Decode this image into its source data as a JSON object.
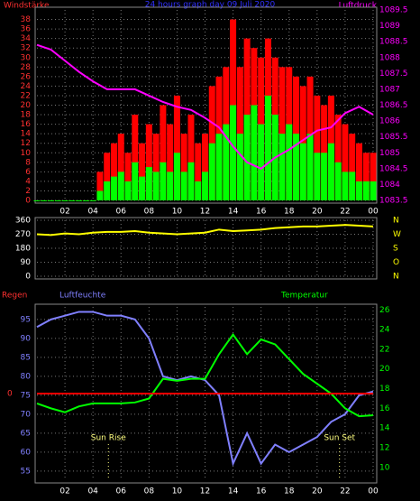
{
  "chart_data": [
    {
      "type": "bar",
      "title": "24 hours graph day  09 Juli 2020",
      "y_label": "Windstärke",
      "y2_label": "Luftdruck",
      "xlim": [
        0,
        24
      ],
      "xticks": [
        {
          "value": 2,
          "label": "02"
        },
        {
          "value": 4,
          "label": "04"
        },
        {
          "value": 6,
          "label": "06"
        },
        {
          "value": 8,
          "label": "08"
        },
        10,
        12,
        14,
        16,
        18,
        20,
        22,
        {
          "value": 24,
          "label": "00"
        }
      ],
      "ylim": [
        0,
        40
      ],
      "yticks": [
        0,
        2,
        4,
        6,
        8,
        10,
        12,
        14,
        16,
        18,
        20,
        22,
        24,
        26,
        28,
        30,
        32,
        34,
        36,
        38
      ],
      "y2lim": [
        1083.5,
        1089.5
      ],
      "y2ticks": [
        1083.5,
        1084,
        1084.5,
        1085,
        1085.5,
        1086,
        1086.5,
        1087,
        1087.5,
        1088,
        1088.5,
        1089,
        1089.5
      ],
      "series": [
        {
          "type": "bar",
          "color": "#ff0000",
          "x": [
            0,
            0.5,
            1,
            1.5,
            2,
            2.5,
            3,
            3.5,
            4,
            4.5,
            5,
            5.5,
            6,
            6.5,
            7,
            7.5,
            8,
            8.5,
            9,
            9.5,
            10,
            10.5,
            11,
            11.5,
            12,
            12.5,
            13,
            13.5,
            14,
            14.5,
            15,
            15.5,
            16,
            16.5,
            17,
            17.5,
            18,
            18.5,
            19,
            19.5,
            20,
            20.5,
            21,
            21.5,
            22,
            22.5,
            23,
            23.5,
            24
          ],
          "values": [
            0,
            0,
            0,
            0,
            0,
            0,
            0,
            0,
            0,
            6,
            10,
            12,
            14,
            10,
            18,
            12,
            16,
            14,
            20,
            16,
            22,
            14,
            18,
            12,
            14,
            24,
            26,
            28,
            38,
            28,
            34,
            32,
            30,
            34,
            30,
            28,
            28,
            26,
            24,
            26,
            22,
            20,
            22,
            18,
            16,
            14,
            12,
            10,
            10
          ]
        },
        {
          "type": "bar",
          "color": "#00ff00",
          "x": [
            0,
            0.5,
            1,
            1.5,
            2,
            2.5,
            3,
            3.5,
            4,
            4.5,
            5,
            5.5,
            6,
            6.5,
            7,
            7.5,
            8,
            8.5,
            9,
            9.5,
            10,
            10.5,
            11,
            11.5,
            12,
            12.5,
            13,
            13.5,
            14,
            14.5,
            15,
            15.5,
            16,
            16.5,
            17,
            17.5,
            18,
            18.5,
            19,
            19.5,
            20,
            20.5,
            21,
            21.5,
            22,
            22.5,
            23,
            23.5,
            24
          ],
          "values": [
            0,
            0,
            0,
            0,
            0,
            0,
            0,
            0,
            0,
            2,
            4,
            5,
            6,
            4,
            8,
            5,
            7,
            6,
            8,
            6,
            10,
            6,
            8,
            4,
            6,
            12,
            14,
            16,
            20,
            14,
            18,
            20,
            16,
            22,
            18,
            14,
            16,
            14,
            12,
            14,
            10,
            10,
            12,
            8,
            6,
            6,
            4,
            4,
            4
          ]
        },
        {
          "type": "line",
          "axis": "y2",
          "color": "#ff00ff",
          "x": [
            0,
            1,
            2,
            3,
            4,
            5,
            6,
            7,
            8,
            9,
            10,
            11,
            12,
            13,
            14,
            15,
            16,
            17,
            18,
            19,
            20,
            21,
            22,
            23,
            24
          ],
          "values": [
            1088.4,
            1088.25,
            1087.9,
            1087.55,
            1087.25,
            1087,
            1087,
            1087,
            1086.8,
            1086.6,
            1086.45,
            1086.35,
            1086.1,
            1085.8,
            1085.2,
            1084.7,
            1084.5,
            1084.85,
            1085.1,
            1085.4,
            1085.7,
            1085.8,
            1086.25,
            1086.45,
            1086.2
          ]
        }
      ]
    },
    {
      "type": "line",
      "xlim": [
        0,
        24
      ],
      "xticks": [
        {
          "value": 2,
          "label": "02"
        },
        {
          "value": 4,
          "label": "04"
        },
        {
          "value": 6,
          "label": "06"
        },
        {
          "value": 8,
          "label": "08"
        },
        10,
        12,
        14,
        16,
        18,
        20,
        22,
        {
          "value": 24,
          "label": "00"
        }
      ],
      "ylim": [
        0,
        360
      ],
      "yticks": [
        0,
        90,
        180,
        270,
        360
      ],
      "y2lim": [
        0,
        360
      ],
      "y2ticks": [
        {
          "value": 360,
          "label": "N"
        },
        {
          "value": 270,
          "label": "W"
        },
        {
          "value": 180,
          "label": "S"
        },
        {
          "value": 90,
          "label": "O"
        },
        {
          "value": 0,
          "label": "N"
        }
      ],
      "series": [
        {
          "type": "line",
          "color": "#ffff00",
          "x": [
            0,
            1,
            2,
            3,
            4,
            5,
            6,
            7,
            8,
            9,
            10,
            11,
            12,
            13,
            14,
            15,
            16,
            17,
            18,
            19,
            20,
            21,
            22,
            23,
            24
          ],
          "values": [
            270,
            265,
            275,
            270,
            280,
            285,
            285,
            290,
            280,
            275,
            270,
            275,
            280,
            300,
            290,
            295,
            300,
            310,
            315,
            320,
            320,
            325,
            330,
            325,
            320
          ]
        }
      ]
    },
    {
      "type": "line",
      "y3_label": "Regen",
      "y_label": "Luftfeuchte",
      "y2_label": "Temperatur",
      "xlim": [
        0,
        24
      ],
      "xticks": [
        {
          "value": 2,
          "label": "02"
        },
        {
          "value": 4,
          "label": "04"
        },
        {
          "value": 6,
          "label": "06"
        },
        {
          "value": 8,
          "label": "08"
        },
        10,
        12,
        14,
        16,
        18,
        20,
        22,
        {
          "value": 24,
          "label": "00"
        }
      ],
      "ylim": [
        52.6,
        98.3
      ],
      "yticks": [
        55,
        60,
        65,
        70,
        75,
        80,
        85,
        90,
        95
      ],
      "y2lim": [
        8.7,
        26.3
      ],
      "y2ticks": [
        10,
        12,
        14,
        16,
        18,
        20,
        22,
        24,
        26
      ],
      "y3lim": [
        -1,
        1
      ],
      "y3ticks": [
        0
      ],
      "annotations": [
        {
          "text": "Sun Rise",
          "x": 5.1
        },
        {
          "text": "Sun Set",
          "x": 21.6
        }
      ],
      "series": [
        {
          "type": "line",
          "color": "#8080ff",
          "x": [
            0,
            1,
            2,
            3,
            4,
            5,
            6,
            7,
            8,
            9,
            10,
            11,
            12,
            13,
            14,
            15,
            16,
            17,
            18,
            19,
            20,
            21,
            22,
            23,
            24
          ],
          "values": [
            93,
            95,
            96,
            97,
            97,
            96,
            96,
            95,
            90,
            80,
            79,
            80,
            79,
            75,
            57,
            65,
            57,
            62,
            60,
            62,
            64,
            68,
            70,
            75,
            76
          ]
        },
        {
          "type": "line",
          "axis": "y2",
          "color": "#00ff00",
          "x": [
            0,
            1,
            2,
            3,
            4,
            5,
            6,
            7,
            8,
            9,
            10,
            11,
            12,
            13,
            14,
            15,
            16,
            17,
            18,
            19,
            20,
            21,
            22,
            23,
            24
          ],
          "values": [
            16.5,
            16,
            15.6,
            16.2,
            16.5,
            16.5,
            16.5,
            16.6,
            17,
            19,
            18.8,
            19,
            19,
            21.5,
            23.5,
            21.5,
            23,
            22.5,
            21,
            19.5,
            18.5,
            17.5,
            16,
            15.2,
            15.3
          ]
        },
        {
          "type": "line",
          "axis": "y3",
          "color": "#ff0000",
          "x": [
            0,
            6,
            12,
            18,
            24
          ],
          "values": [
            0,
            0,
            0,
            0,
            0
          ]
        }
      ]
    }
  ]
}
